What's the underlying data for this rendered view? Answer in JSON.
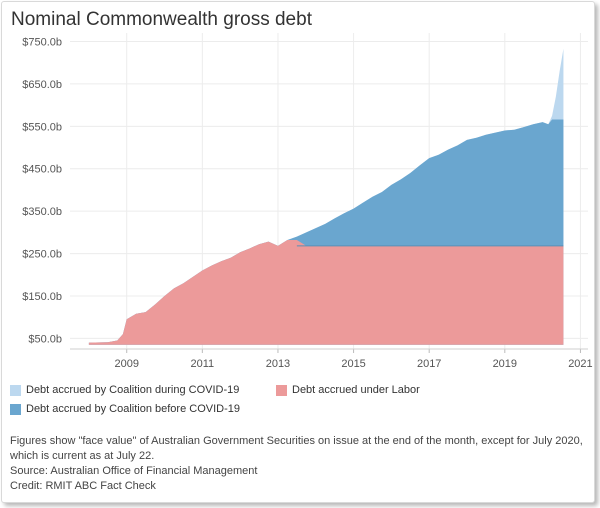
{
  "colors": {
    "labor": "#ec9a9a",
    "before_covid": "#6aa6cf",
    "during_covid": "#bcd8ef",
    "grid": "#ececec",
    "text": "#555555"
  },
  "chart_data": {
    "type": "area",
    "title": "Nominal Commonwealth gross debt",
    "xlabel": "",
    "ylabel": "",
    "unit": "$ billions",
    "xlim": [
      2007.5,
      2021.2
    ],
    "ylim": [
      25,
      770
    ],
    "x_tick_labels": [
      "2009",
      "2011",
      "2013",
      "2015",
      "2017",
      "2019",
      "2021"
    ],
    "x_ticks": [
      2009,
      2011,
      2013,
      2015,
      2017,
      2019,
      2021
    ],
    "y_tick_labels": [
      "$50.0b",
      "$150.0b",
      "$250.0b",
      "$350.0b",
      "$450.0b",
      "$550.0b",
      "$650.0b",
      "$750.0b"
    ],
    "y_ticks": [
      50,
      150,
      250,
      350,
      450,
      550,
      650,
      750
    ],
    "grid": true,
    "legend_position": "bottom",
    "total_debt": {
      "x": [
        2008.0,
        2008.5,
        2008.75,
        2008.9,
        2009.0,
        2009.25,
        2009.5,
        2009.75,
        2010.0,
        2010.25,
        2010.5,
        2010.75,
        2011.0,
        2011.25,
        2011.5,
        2011.75,
        2012.0,
        2012.25,
        2012.5,
        2012.75,
        2013.0,
        2013.25,
        2013.5,
        2013.75,
        2014.0,
        2014.25,
        2014.5,
        2014.75,
        2015.0,
        2015.25,
        2015.5,
        2015.75,
        2016.0,
        2016.25,
        2016.5,
        2016.75,
        2017.0,
        2017.25,
        2017.5,
        2017.75,
        2018.0,
        2018.25,
        2018.5,
        2018.75,
        2019.0,
        2019.25,
        2019.5,
        2019.75,
        2020.0,
        2020.15,
        2020.25,
        2020.35,
        2020.45,
        2020.55
      ],
      "y": [
        40,
        41,
        45,
        60,
        95,
        108,
        112,
        130,
        150,
        168,
        180,
        195,
        210,
        222,
        232,
        240,
        253,
        262,
        272,
        278,
        268,
        282,
        290,
        300,
        310,
        320,
        333,
        345,
        356,
        370,
        384,
        395,
        412,
        425,
        440,
        458,
        475,
        483,
        495,
        505,
        518,
        523,
        530,
        535,
        540,
        542,
        548,
        555,
        560,
        555,
        575,
        620,
        680,
        733
      ]
    },
    "series": [
      {
        "name": "Debt accrued under Labor",
        "x": [
          2008.0,
          2008.5,
          2008.75,
          2008.9,
          2009.0,
          2009.25,
          2009.5,
          2009.75,
          2010.0,
          2010.25,
          2010.5,
          2010.75,
          2011.0,
          2011.25,
          2011.5,
          2011.75,
          2012.0,
          2012.25,
          2012.5,
          2012.75,
          2013.0,
          2013.25,
          2013.5,
          2020.55
        ],
        "y": [
          40,
          41,
          45,
          60,
          95,
          108,
          112,
          130,
          150,
          168,
          180,
          195,
          210,
          222,
          232,
          240,
          253,
          262,
          272,
          278,
          268,
          282,
          282,
          282
        ]
      },
      {
        "name": "Debt accrued by Coalition before COVID-19",
        "x": [
          2013.5,
          2020.55
        ],
        "y": [
          282,
          566
        ]
      },
      {
        "name": "Debt accrued by Coalition during COVID-19",
        "x": [
          2020.15,
          2020.55
        ],
        "y": [
          566,
          733
        ]
      }
    ]
  },
  "legend": {
    "during_covid": "Debt accrued by Coalition during COVID-19",
    "labor": "Debt accrued under Labor",
    "before_covid": "Debt accrued by Coalition before COVID-19"
  },
  "notes": {
    "line1": "Figures show \"face value\" of Australian Government Securities on issue at the end of the month, except for July 2020, which is current as at July 22.",
    "source": "Source: Australian Office of Financial Management",
    "credit": "Credit: RMIT ABC Fact Check"
  }
}
